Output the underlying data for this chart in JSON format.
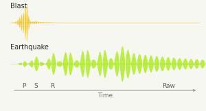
{
  "blast_color": "#F5CC45",
  "blast_line_color": "#E0B020",
  "earthquake_color": "#BBEE44",
  "earthquake_line_color": "#99CC22",
  "bg_color": "#F7F7F2",
  "blast_label": "Blast",
  "earthquake_label": "Earthquake",
  "p_label": "P",
  "s_label": "S",
  "r_label": "R",
  "raw_label": "Raw",
  "time_label": "Time",
  "label_fontsize": 7.0,
  "tick_fontsize": 6.5,
  "figw": 3.0,
  "figh": 1.62,
  "dpi": 100
}
